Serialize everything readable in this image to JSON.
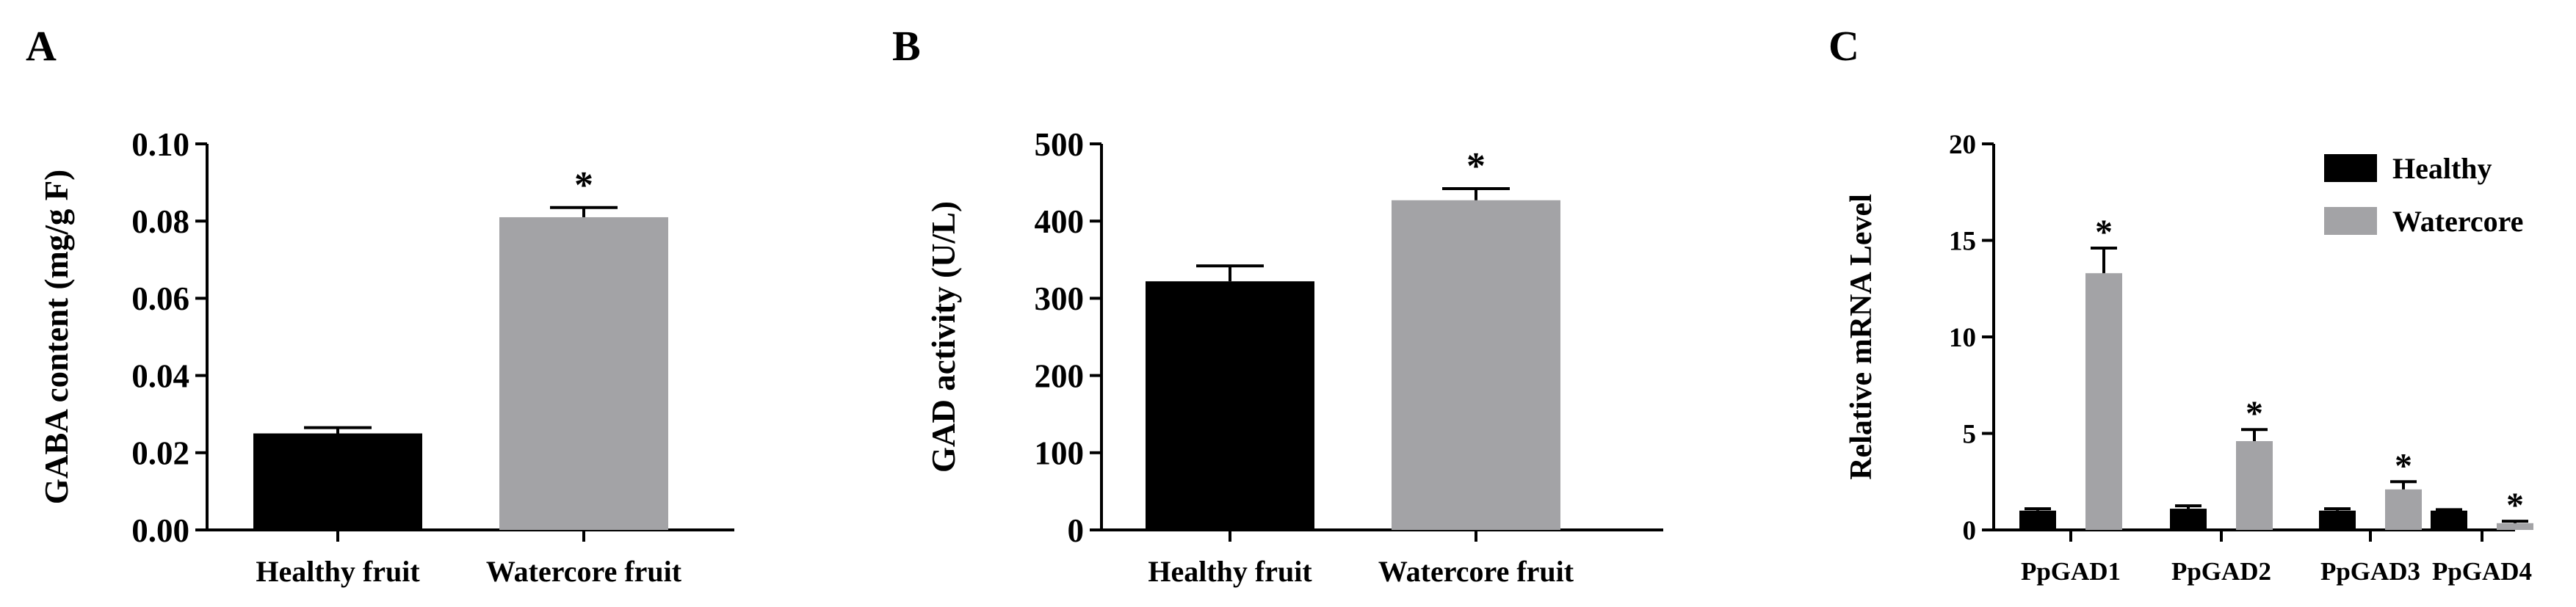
{
  "colors": {
    "healthy": "#000000",
    "watercore": "#a3a3a6",
    "axis": "#000000"
  },
  "chart_data": [
    {
      "panel_label": "A",
      "type": "bar",
      "ylabel": "GABA content (mg/g F)",
      "ylim": [
        0,
        0.1
      ],
      "yticks": [
        "0.00",
        "0.02",
        "0.04",
        "0.06",
        "0.08",
        "0.10"
      ],
      "categories": [
        "Healthy fruit",
        "Watercore fruit"
      ],
      "values": [
        0.025,
        0.081
      ],
      "errors": [
        0.0015,
        0.0025
      ],
      "colors": [
        "#000000",
        "#a3a3a6"
      ],
      "annotations": [
        "",
        "*"
      ]
    },
    {
      "panel_label": "B",
      "type": "bar",
      "ylabel": "GAD activity (U/L)",
      "ylim": [
        0,
        500
      ],
      "yticks": [
        "0",
        "100",
        "200",
        "300",
        "400",
        "500"
      ],
      "categories": [
        "Healthy fruit",
        "Watercore fruit"
      ],
      "values": [
        322,
        427
      ],
      "errors": [
        20,
        15
      ],
      "colors": [
        "#000000",
        "#a3a3a6"
      ],
      "annotations": [
        "",
        "*"
      ]
    },
    {
      "panel_label": "C",
      "type": "bar",
      "ylabel": "Relative mRNA Level",
      "ylim": [
        0,
        20
      ],
      "yticks": [
        "0",
        "5",
        "10",
        "15",
        "20"
      ],
      "categories": [
        "PpGAD1",
        "PpGAD2",
        "PpGAD3",
        "PpGAD4"
      ],
      "series": [
        {
          "name": "Healthy",
          "values": [
            1.0,
            1.1,
            1.0,
            1.0
          ],
          "errors": [
            0.1,
            0.15,
            0.1,
            0.05
          ]
        },
        {
          "name": "Watercore",
          "values": [
            13.3,
            4.6,
            2.1,
            0.35
          ],
          "errors": [
            1.3,
            0.6,
            0.4,
            0.1
          ]
        }
      ],
      "annotations": [
        "*",
        "*",
        "*",
        "*"
      ],
      "legend_position": "top-right"
    }
  ]
}
